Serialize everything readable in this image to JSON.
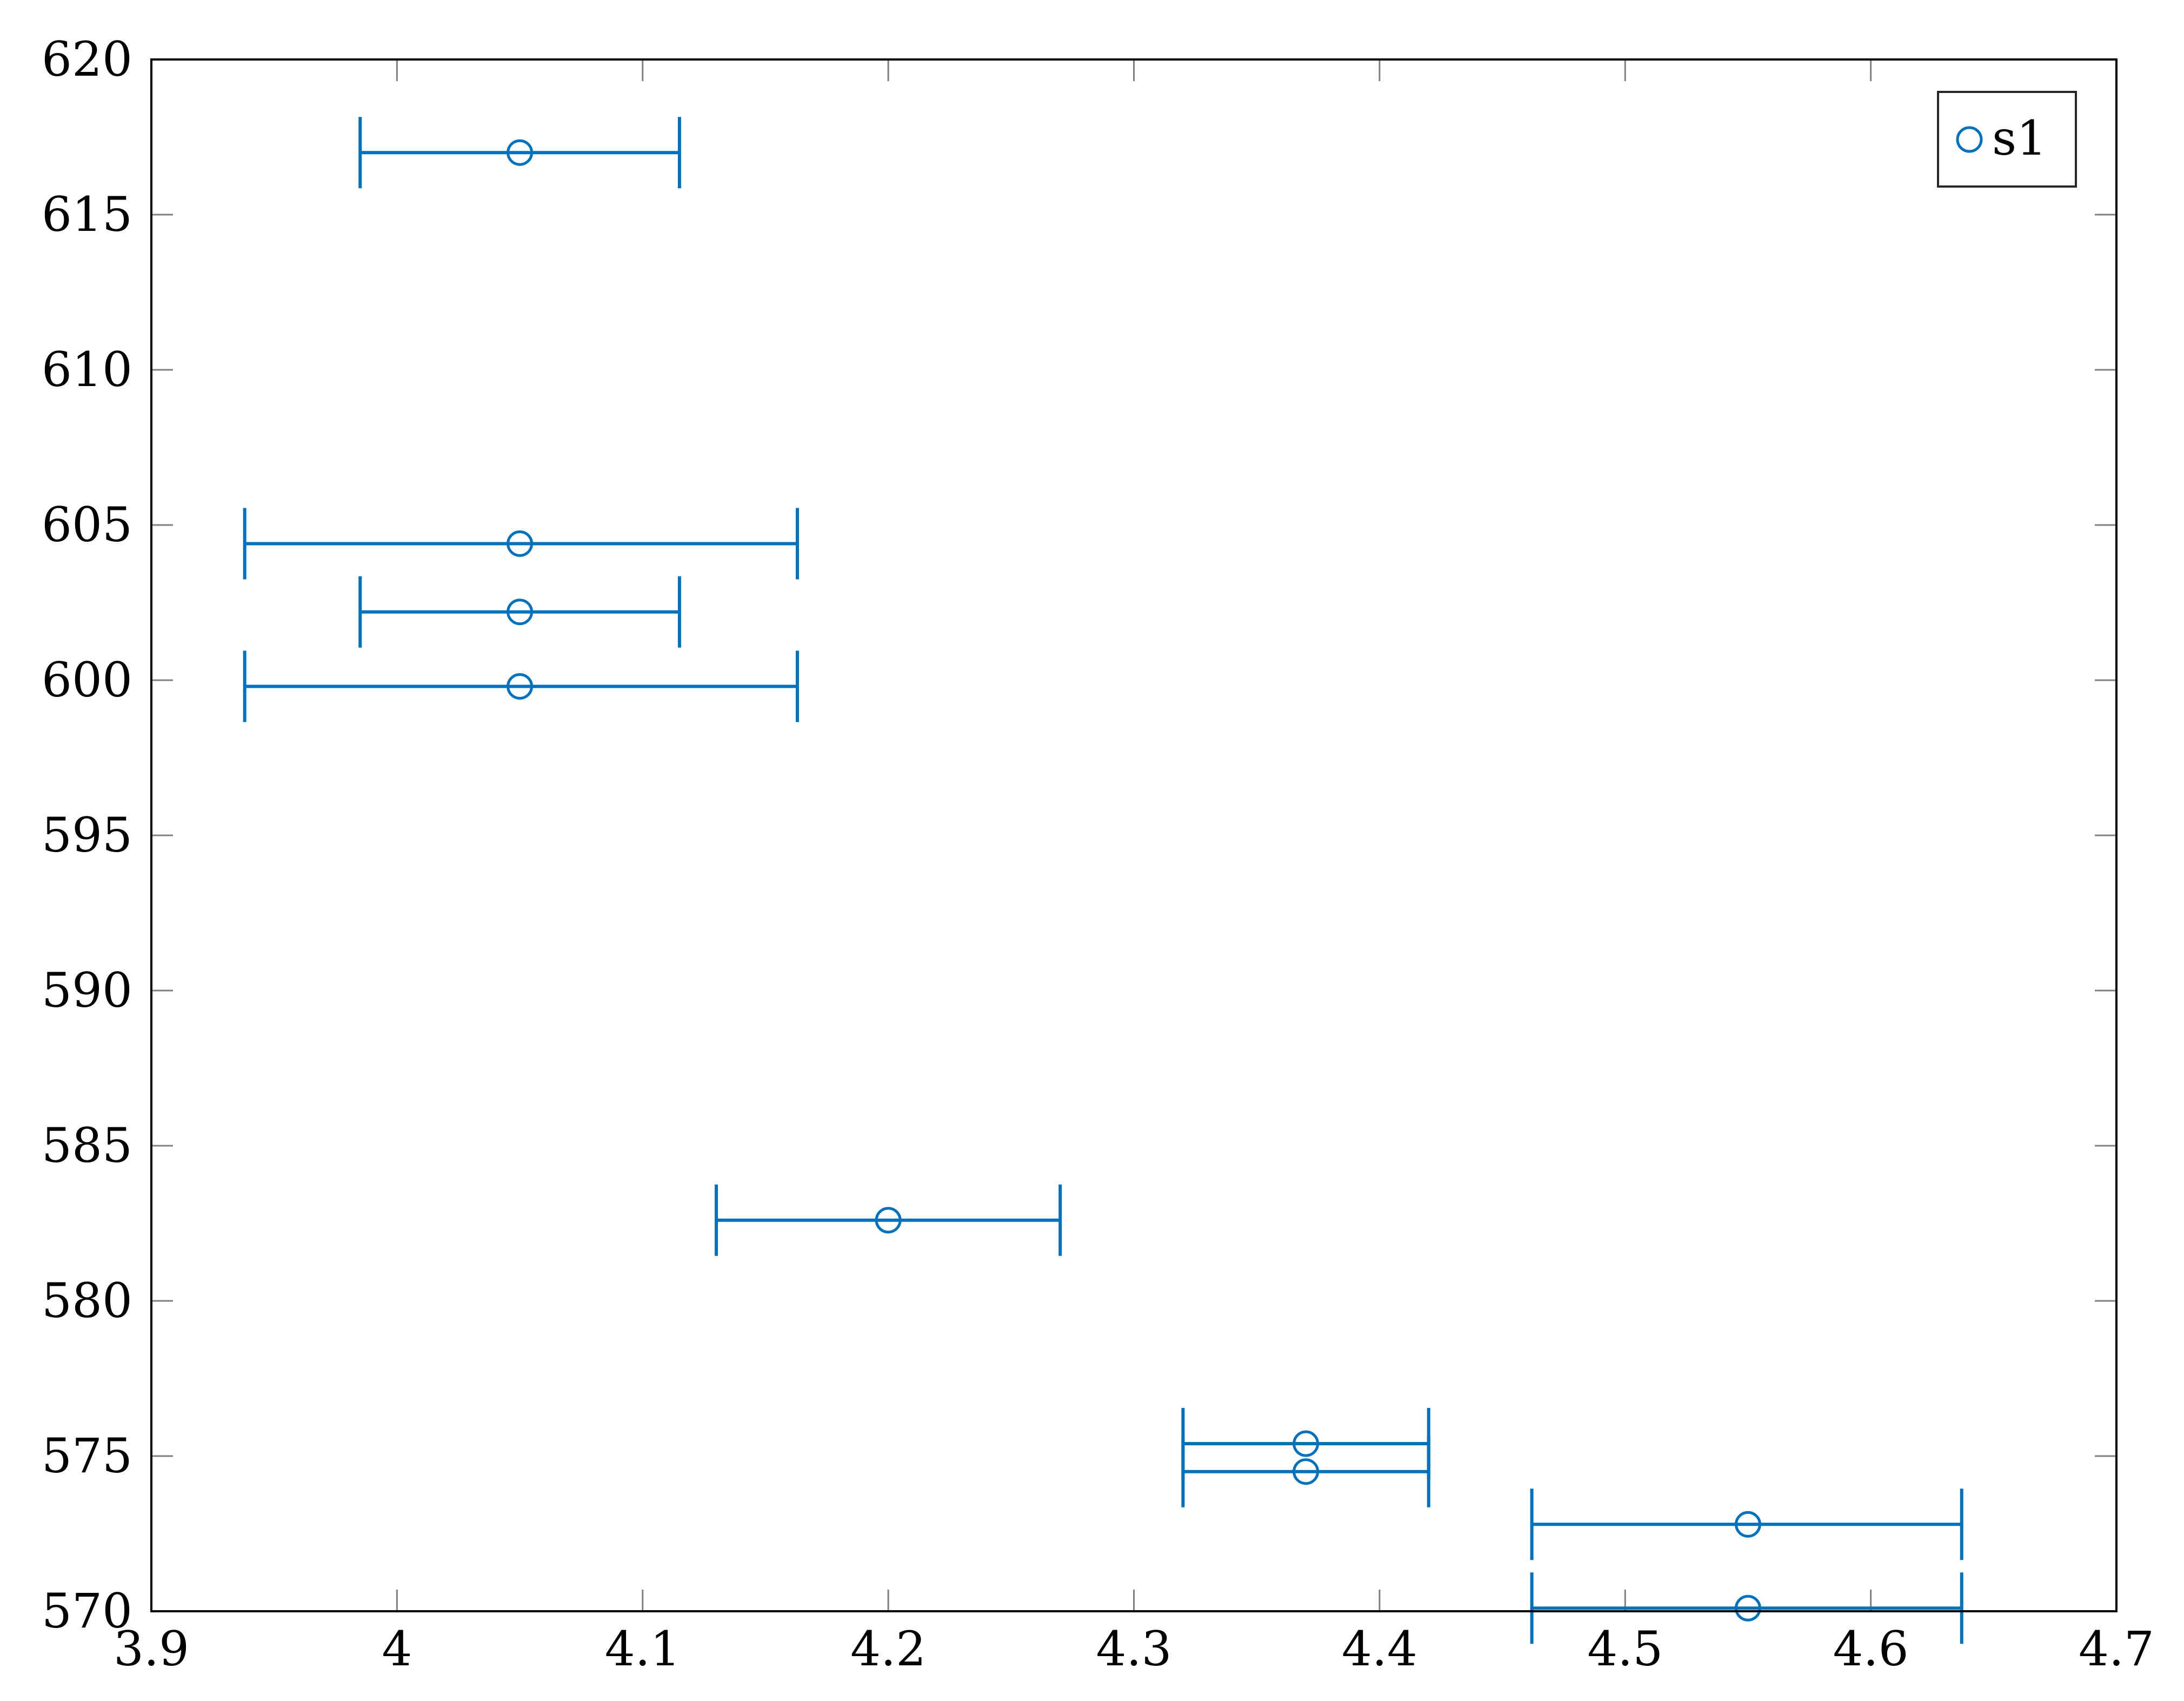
{
  "chart_data": {
    "type": "scatter",
    "title": "",
    "xlabel": "",
    "ylabel": "",
    "xlim": [
      3.9,
      4.7
    ],
    "ylim": [
      570,
      620
    ],
    "xticks": [
      3.9,
      4,
      4.1,
      4.2,
      4.3,
      4.4,
      4.5,
      4.6,
      4.7
    ],
    "xtick_labels": [
      "3.9",
      "4",
      "4.1",
      "4.2",
      "4.3",
      "4.4",
      "4.5",
      "4.6",
      "4.7"
    ],
    "yticks": [
      570,
      575,
      580,
      585,
      590,
      595,
      600,
      605,
      610,
      615,
      620
    ],
    "ytick_labels": [
      "570",
      "575",
      "580",
      "585",
      "590",
      "595",
      "600",
      "605",
      "610",
      "615",
      "620"
    ],
    "grid": false,
    "legend_position": "top-right",
    "series": [
      {
        "name": "s1",
        "color": "#0072BD",
        "marker": "circle-open",
        "error_bars": "horizontal",
        "points": [
          {
            "x": 4.05,
            "y": 617.0,
            "xerr_minus": 0.065,
            "xerr_plus": 0.065
          },
          {
            "x": 4.05,
            "y": 604.4,
            "xerr_minus": 0.112,
            "xerr_plus": 0.113
          },
          {
            "x": 4.05,
            "y": 602.2,
            "xerr_minus": 0.065,
            "xerr_plus": 0.065
          },
          {
            "x": 4.05,
            "y": 599.8,
            "xerr_minus": 0.112,
            "xerr_plus": 0.113
          },
          {
            "x": 4.2,
            "y": 582.6,
            "xerr_minus": 0.07,
            "xerr_plus": 0.07
          },
          {
            "x": 4.37,
            "y": 575.4,
            "xerr_minus": 0.05,
            "xerr_plus": 0.05
          },
          {
            "x": 4.37,
            "y": 574.5,
            "xerr_minus": 0.05,
            "xerr_plus": 0.05
          },
          {
            "x": 4.55,
            "y": 572.8,
            "xerr_minus": 0.088,
            "xerr_plus": 0.087
          },
          {
            "x": 4.55,
            "y": 570.1,
            "xerr_minus": 0.088,
            "xerr_plus": 0.087
          }
        ]
      }
    ]
  }
}
